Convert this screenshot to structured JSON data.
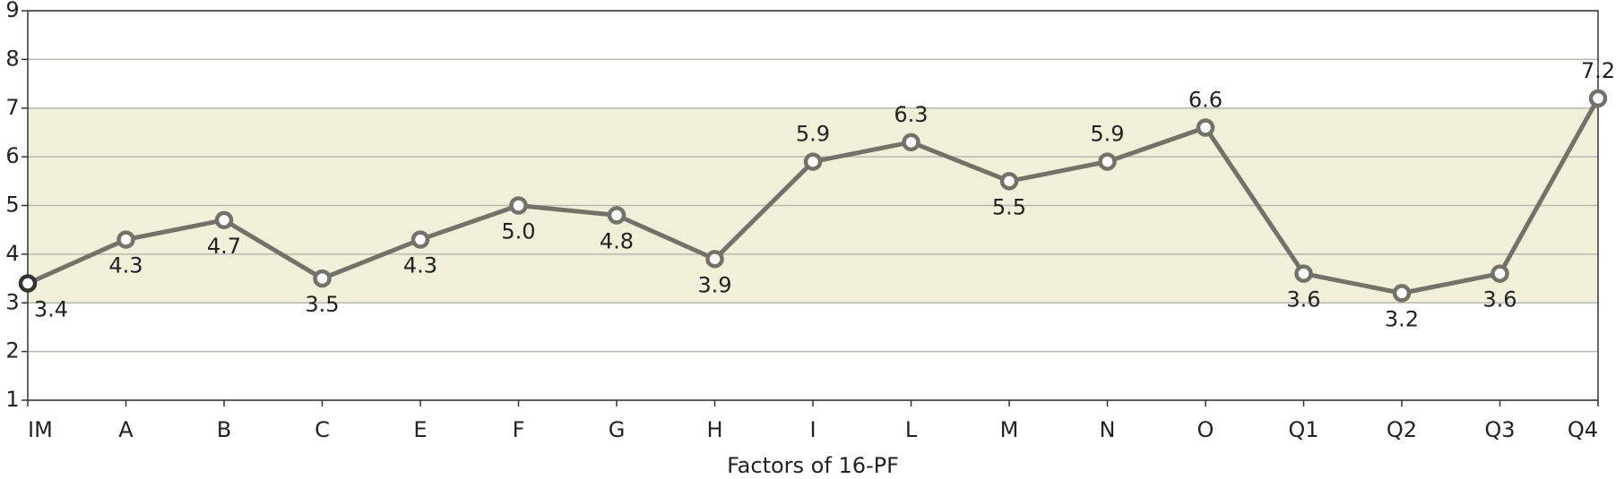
{
  "chart_data": {
    "type": "line",
    "x_label": "Factors of 16-PF",
    "categories": [
      "IM",
      "A",
      "B",
      "C",
      "E",
      "F",
      "G",
      "H",
      "I",
      "L",
      "M",
      "N",
      "O",
      "Q1",
      "Q2",
      "Q3",
      "Q4"
    ],
    "values": [
      3.4,
      4.3,
      4.7,
      3.5,
      4.3,
      5,
      4.8,
      3.9,
      5.9,
      6.3,
      5.5,
      5.9,
      6.6,
      3.6,
      3.2,
      3.6,
      7.2
    ],
    "value_labels": [
      "3.4",
      "4.3",
      "4.7",
      "3.5",
      "4.3",
      "5.0",
      "4.8",
      "3.9",
      "5.9",
      "6.3",
      "5.5",
      "5.9",
      "6.6",
      "3.6",
      "3.2",
      "3.6",
      "7.2"
    ],
    "color": "#747168",
    "shaded_range": [
      3,
      7
    ],
    "shaded_color": "#f2efd8",
    "ylim": [
      1,
      9
    ],
    "yticks": [
      1,
      2,
      3,
      4,
      5,
      6,
      7,
      8,
      9
    ],
    "grid": true
  }
}
